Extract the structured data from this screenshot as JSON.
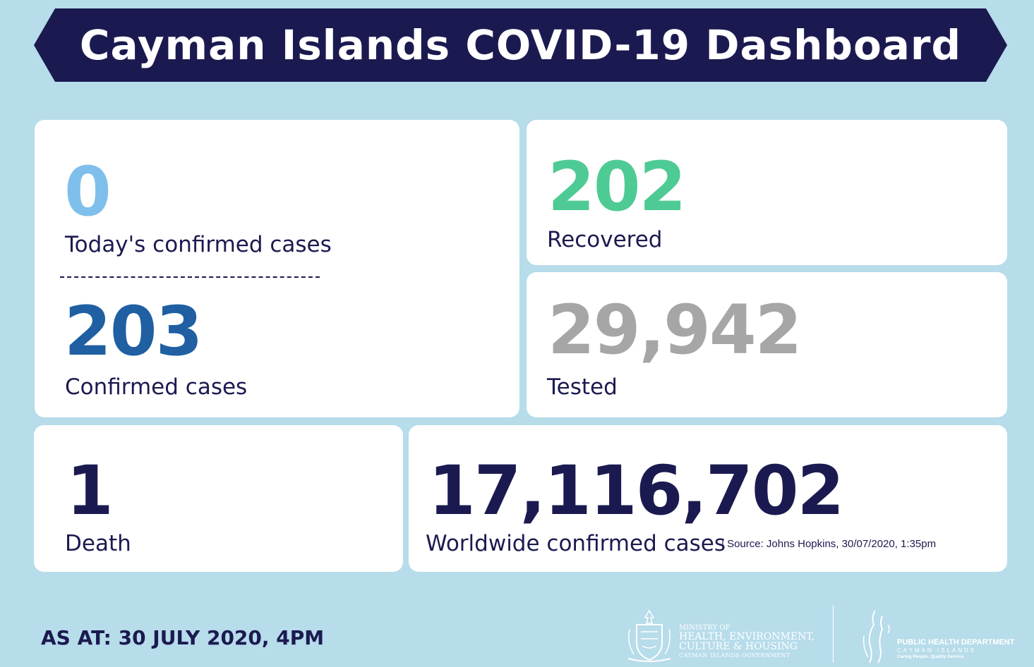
{
  "title": "Cayman Islands COVID-19 Dashboard",
  "today_cases": {
    "value": "0",
    "label": "Today's confirmed cases"
  },
  "confirmed": {
    "value": "203",
    "label": "Confirmed cases"
  },
  "recovered": {
    "value": "202",
    "label": "Recovered"
  },
  "tested": {
    "value": "29,942",
    "label": "Tested"
  },
  "death": {
    "value": "1",
    "label": "Death"
  },
  "worldwide": {
    "value": "17,116,702",
    "label": "Worldwide confirmed cases",
    "source": "| Source: Johns Hopkins, 30/07/2020, 1:35pm"
  },
  "as_at": "AS AT: 30 JULY 2020, 4PM",
  "ministry": {
    "line1": "MINISTRY OF",
    "line2": "HEALTH, ENVIRONMENT,",
    "line3": "CULTURE & HOUSING",
    "line4": "CAYMAN ISLANDS GOVERNMENT"
  },
  "phd": {
    "line1": "PUBLIC HEALTH DEPARTMENT",
    "line2": "CAYMAN ISLANDS",
    "line3": "Caring People. Quality Service."
  },
  "colors": {
    "background": "#b7dcea",
    "navy": "#1b1a50",
    "today": "#7fbfeb",
    "confirmed": "#1f5fa2",
    "recovered": "#4ecb94",
    "tested": "#a6a6a6"
  }
}
